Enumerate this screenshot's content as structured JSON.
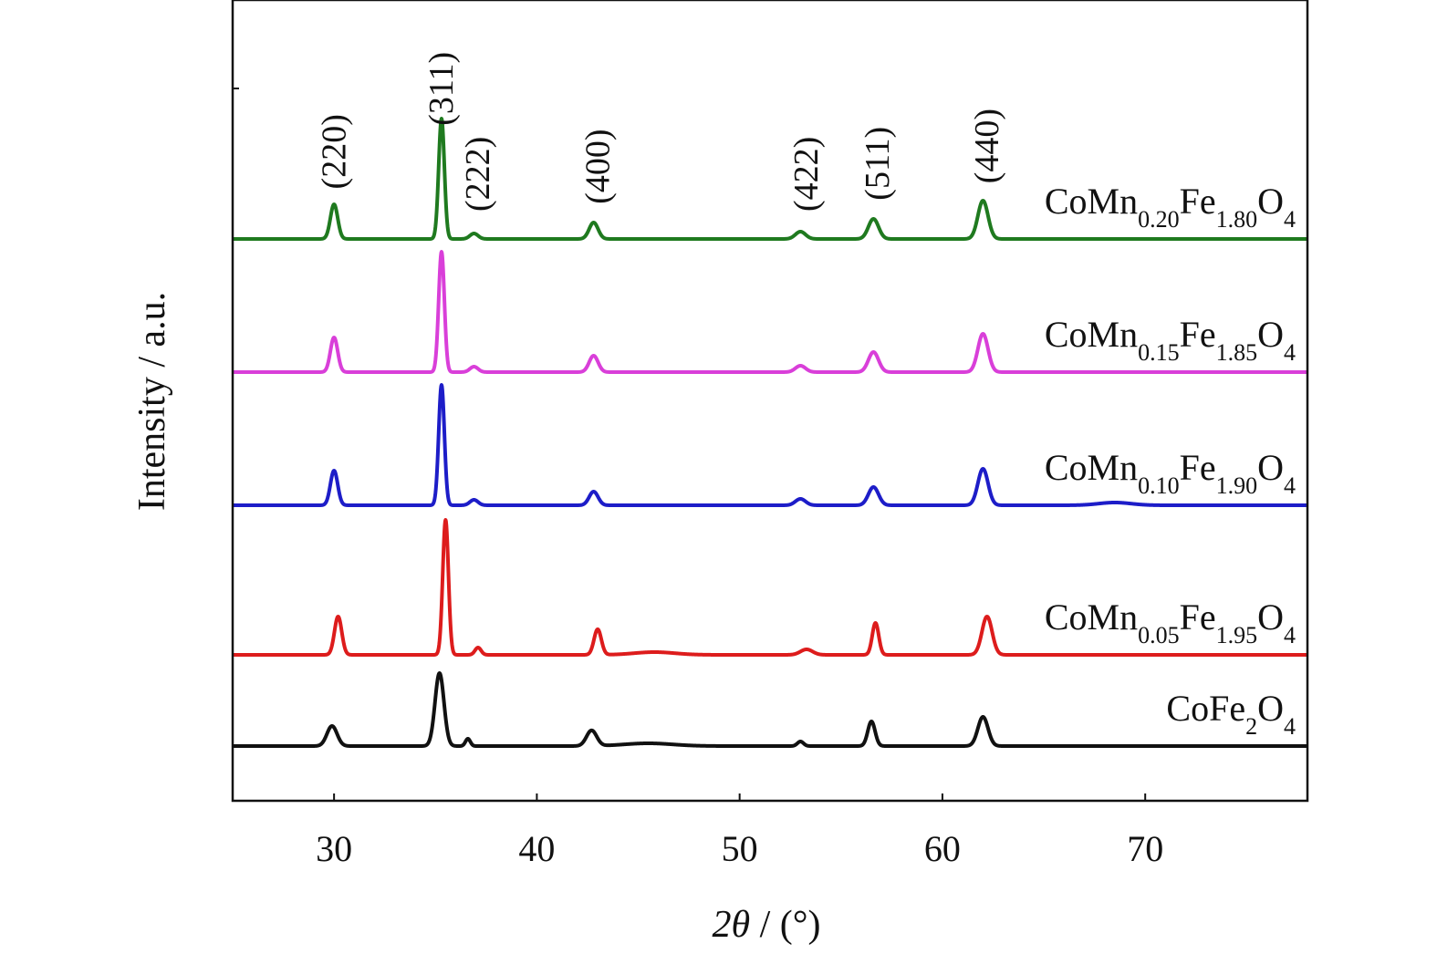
{
  "chart_data": {
    "type": "line",
    "title": "",
    "xlabel": "2θ / (°)",
    "xlabel_parts": {
      "var": "2θ",
      "rest": " / (°)"
    },
    "ylabel": "Intensity / a.u.",
    "xlim": [
      25,
      78
    ],
    "x_ticks": [
      30,
      40,
      50,
      60,
      70
    ],
    "grid": false,
    "legend": "inline-right",
    "peak_labels": [
      {
        "text": "(220)",
        "x": 30.1
      },
      {
        "text": "(311)",
        "x": 35.4
      },
      {
        "text": "(222)",
        "x": 37.2
      },
      {
        "text": "(400)",
        "x": 43.1
      },
      {
        "text": "(422)",
        "x": 53.4
      },
      {
        "text": "(511)",
        "x": 56.9
      },
      {
        "text": "(440)",
        "x": 62.3
      }
    ],
    "series": [
      {
        "name": "CoFe2O4",
        "label_parts": [
          {
            "t": "CoFe"
          },
          {
            "t": "2",
            "sub": true
          },
          {
            "t": "O"
          },
          {
            "t": "4",
            "sub": true
          }
        ],
        "color": "#111111",
        "offset": 0,
        "peaks": [
          {
            "x": 29.9,
            "h": 22,
            "w": 0.25
          },
          {
            "x": 35.2,
            "h": 80,
            "w": 0.22
          },
          {
            "x": 36.6,
            "h": 8,
            "w": 0.12
          },
          {
            "x": 42.7,
            "h": 17,
            "w": 0.25
          },
          {
            "x": 45.5,
            "h": 3,
            "w": 1.2
          },
          {
            "x": 53.0,
            "h": 5,
            "w": 0.15
          },
          {
            "x": 56.5,
            "h": 27,
            "w": 0.18
          },
          {
            "x": 62.0,
            "h": 32,
            "w": 0.25
          }
        ]
      },
      {
        "name": "CoMn0.05Fe1.95O4",
        "label_parts": [
          {
            "t": "CoMn"
          },
          {
            "t": "0.05",
            "sub": true
          },
          {
            "t": "Fe"
          },
          {
            "t": "1.95",
            "sub": true
          },
          {
            "t": "O"
          },
          {
            "t": "4",
            "sub": true
          }
        ],
        "color": "#dd1c1c",
        "offset": 100,
        "peaks": [
          {
            "x": 30.2,
            "h": 42,
            "w": 0.18
          },
          {
            "x": 35.5,
            "h": 148,
            "w": 0.14
          },
          {
            "x": 37.1,
            "h": 8,
            "w": 0.15
          },
          {
            "x": 43.0,
            "h": 28,
            "w": 0.18
          },
          {
            "x": 45.8,
            "h": 3,
            "w": 1.0
          },
          {
            "x": 53.3,
            "h": 6,
            "w": 0.3
          },
          {
            "x": 56.7,
            "h": 35,
            "w": 0.16
          },
          {
            "x": 62.2,
            "h": 42,
            "w": 0.25
          }
        ]
      },
      {
        "name": "CoMn0.10Fe1.90O4",
        "label_parts": [
          {
            "t": "CoMn"
          },
          {
            "t": "0.10",
            "sub": true
          },
          {
            "t": "Fe"
          },
          {
            "t": "1.90",
            "sub": true
          },
          {
            "t": "O"
          },
          {
            "t": "4",
            "sub": true
          }
        ],
        "color": "#1d1dc8",
        "offset": 264,
        "peaks": [
          {
            "x": 30.0,
            "h": 38,
            "w": 0.18
          },
          {
            "x": 35.3,
            "h": 132,
            "w": 0.14
          },
          {
            "x": 36.9,
            "h": 6,
            "w": 0.2
          },
          {
            "x": 42.8,
            "h": 15,
            "w": 0.22
          },
          {
            "x": 53.0,
            "h": 7,
            "w": 0.25
          },
          {
            "x": 56.6,
            "h": 20,
            "w": 0.25
          },
          {
            "x": 62.0,
            "h": 40,
            "w": 0.25
          },
          {
            "x": 68.5,
            "h": 3,
            "w": 0.8
          }
        ]
      },
      {
        "name": "CoMn0.15Fe1.85O4",
        "label_parts": [
          {
            "t": "CoMn"
          },
          {
            "t": "0.15",
            "sub": true
          },
          {
            "t": "Fe"
          },
          {
            "t": "1.85",
            "sub": true
          },
          {
            "t": "O"
          },
          {
            "t": "4",
            "sub": true
          }
        ],
        "color": "#d93fd9",
        "offset": 410,
        "peaks": [
          {
            "x": 30.0,
            "h": 38,
            "w": 0.18
          },
          {
            "x": 35.3,
            "h": 132,
            "w": 0.14
          },
          {
            "x": 36.9,
            "h": 6,
            "w": 0.2
          },
          {
            "x": 42.8,
            "h": 18,
            "w": 0.22
          },
          {
            "x": 53.0,
            "h": 7,
            "w": 0.25
          },
          {
            "x": 56.6,
            "h": 22,
            "w": 0.25
          },
          {
            "x": 62.0,
            "h": 42,
            "w": 0.25
          }
        ]
      },
      {
        "name": "CoMn0.20Fe1.80O4",
        "label_parts": [
          {
            "t": "CoMn"
          },
          {
            "t": "0.20",
            "sub": true
          },
          {
            "t": "Fe"
          },
          {
            "t": "1.80",
            "sub": true
          },
          {
            "t": "O"
          },
          {
            "t": "4",
            "sub": true
          }
        ],
        "color": "#1f7a1f",
        "offset": 556,
        "peaks": [
          {
            "x": 30.0,
            "h": 38,
            "w": 0.18
          },
          {
            "x": 35.3,
            "h": 132,
            "w": 0.14
          },
          {
            "x": 36.9,
            "h": 6,
            "w": 0.2
          },
          {
            "x": 42.8,
            "h": 18,
            "w": 0.22
          },
          {
            "x": 53.0,
            "h": 8,
            "w": 0.25
          },
          {
            "x": 56.6,
            "h": 22,
            "w": 0.25
          },
          {
            "x": 62.0,
            "h": 42,
            "w": 0.25
          }
        ]
      }
    ]
  }
}
